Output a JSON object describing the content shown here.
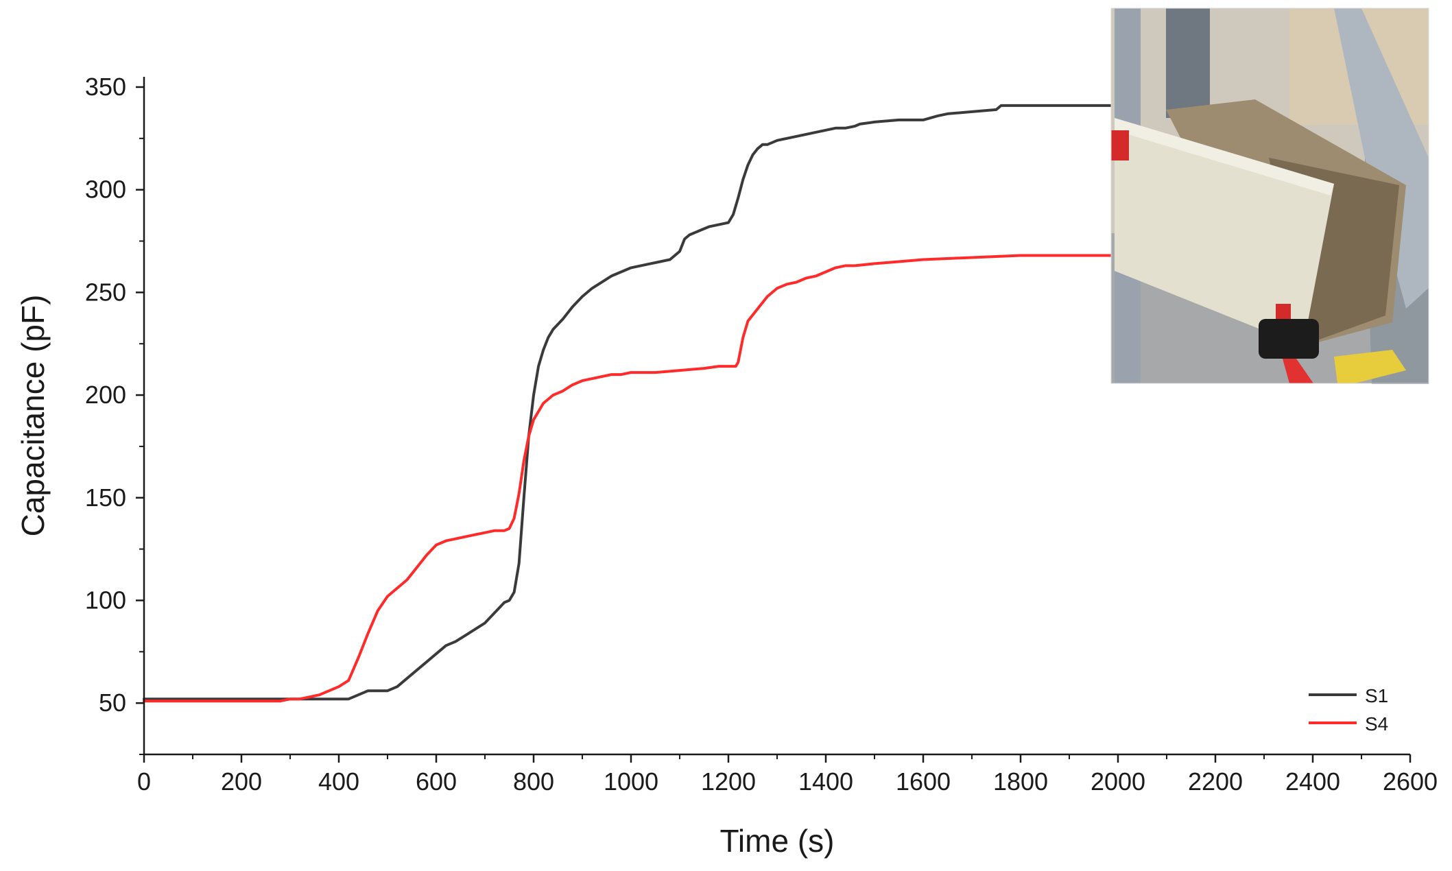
{
  "chart_data": {
    "type": "line",
    "title": "",
    "xlabel": "Time (s)",
    "ylabel": "Capacitance (pF)",
    "xlim": [
      0,
      2600
    ],
    "ylim": [
      25,
      355
    ],
    "xticks": [
      "0",
      "200",
      "400",
      "600",
      "800",
      "1000",
      "1200",
      "1400",
      "1600",
      "1800",
      "2000",
      "2200",
      "2400",
      "2600"
    ],
    "yticks": [
      "50",
      "100",
      "150",
      "200",
      "250",
      "300",
      "350"
    ],
    "grid": false,
    "legend_position": "bottom-right",
    "inset": "photo of a test specimen (board clamped against insulation block) in upper-right corner",
    "series": [
      {
        "name": "S1",
        "color": "#3a3a3a",
        "x": [
          0,
          100,
          200,
          300,
          350,
          400,
          420,
          440,
          460,
          480,
          500,
          520,
          540,
          560,
          580,
          600,
          620,
          640,
          660,
          680,
          700,
          720,
          740,
          750,
          760,
          770,
          780,
          790,
          800,
          810,
          820,
          830,
          840,
          860,
          880,
          900,
          920,
          940,
          960,
          980,
          1000,
          1020,
          1040,
          1060,
          1080,
          1100,
          1110,
          1120,
          1140,
          1160,
          1180,
          1200,
          1210,
          1220,
          1230,
          1240,
          1250,
          1260,
          1270,
          1280,
          1300,
          1320,
          1340,
          1360,
          1380,
          1400,
          1420,
          1440,
          1460,
          1470,
          1500,
          1550,
          1600,
          1630,
          1650,
          1700,
          1750,
          1760,
          1800,
          1900,
          2000
        ],
        "y": [
          52,
          52,
          52,
          52,
          52,
          52,
          52,
          54,
          56,
          56,
          56,
          58,
          62,
          66,
          70,
          74,
          78,
          80,
          83,
          86,
          89,
          94,
          99,
          100,
          104,
          118,
          150,
          180,
          200,
          214,
          222,
          228,
          232,
          237,
          243,
          248,
          252,
          255,
          258,
          260,
          262,
          263,
          264,
          265,
          266,
          270,
          276,
          278,
          280,
          282,
          283,
          284,
          288,
          296,
          305,
          312,
          317,
          320,
          322,
          322,
          324,
          325,
          326,
          327,
          328,
          329,
          330,
          330,
          331,
          332,
          333,
          334,
          334,
          336,
          337,
          338,
          339,
          341,
          341,
          341,
          341
        ]
      },
      {
        "name": "S4",
        "color": "#ff2a2a",
        "x": [
          0,
          100,
          200,
          280,
          300,
          320,
          340,
          360,
          380,
          400,
          420,
          440,
          460,
          480,
          500,
          520,
          540,
          560,
          580,
          600,
          620,
          640,
          660,
          680,
          700,
          720,
          740,
          750,
          760,
          770,
          780,
          790,
          800,
          810,
          820,
          840,
          860,
          880,
          900,
          920,
          940,
          960,
          980,
          1000,
          1050,
          1100,
          1150,
          1180,
          1200,
          1215,
          1220,
          1230,
          1240,
          1260,
          1280,
          1300,
          1320,
          1340,
          1360,
          1380,
          1400,
          1410,
          1420,
          1440,
          1460,
          1500,
          1550,
          1600,
          1700,
          1800,
          1900,
          2000
        ],
        "y": [
          51,
          51,
          51,
          51,
          52,
          52,
          53,
          54,
          56,
          58,
          61,
          72,
          84,
          95,
          102,
          106,
          110,
          116,
          122,
          127,
          129,
          130,
          131,
          132,
          133,
          134,
          134,
          135,
          140,
          152,
          168,
          180,
          188,
          192,
          196,
          200,
          202,
          205,
          207,
          208,
          209,
          210,
          210,
          211,
          211,
          212,
          213,
          214,
          214,
          214,
          216,
          228,
          236,
          242,
          248,
          252,
          254,
          255,
          257,
          258,
          260,
          261,
          262,
          263,
          263,
          264,
          265,
          266,
          267,
          268,
          268,
          268
        ]
      }
    ]
  }
}
